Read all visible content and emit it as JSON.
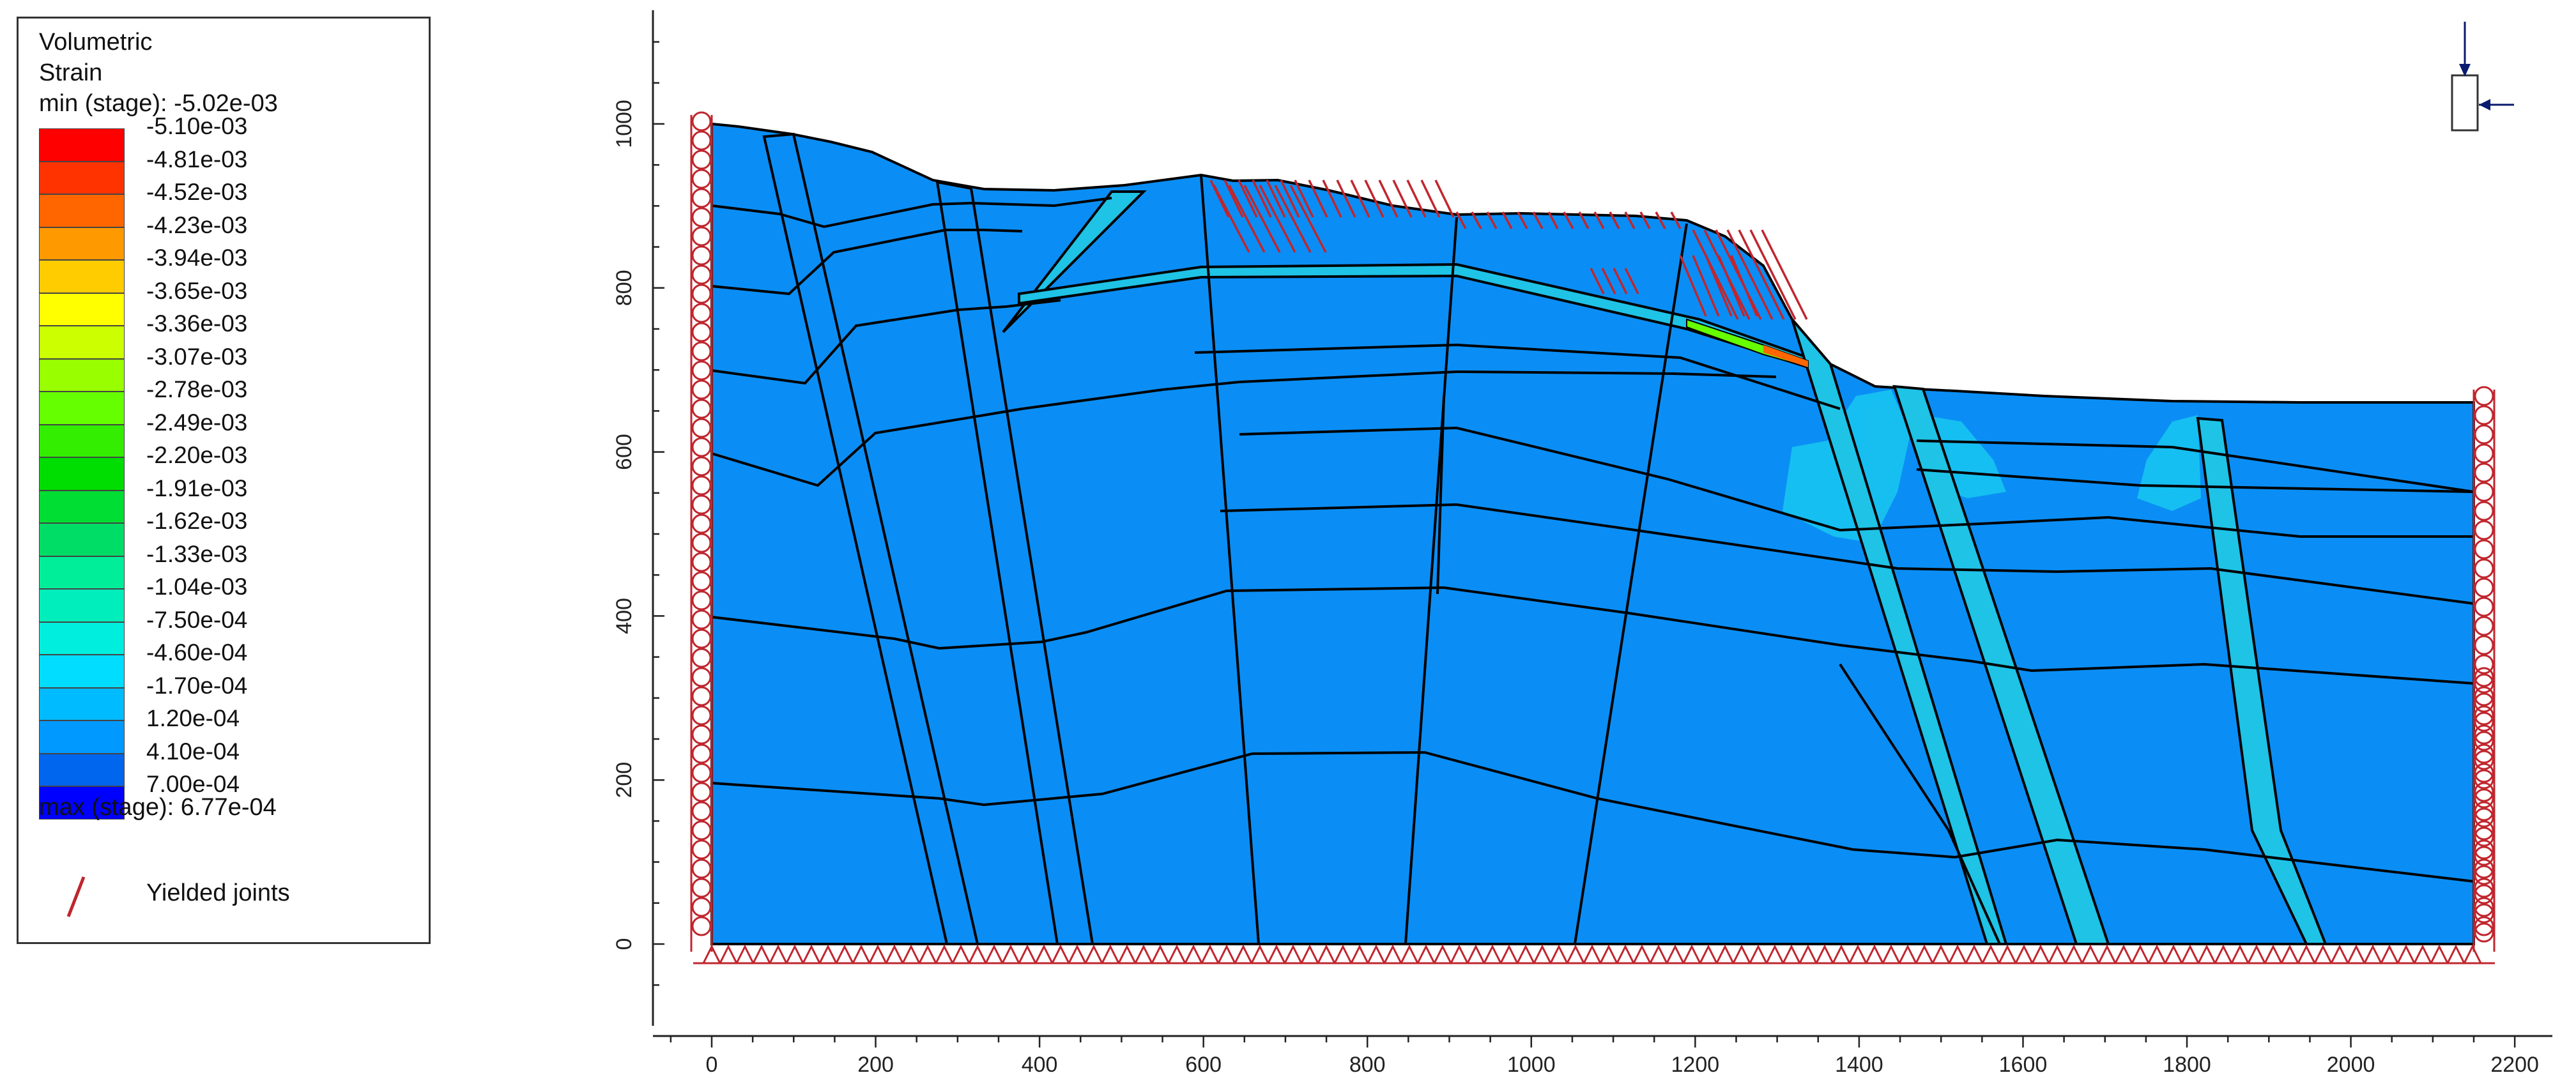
{
  "legend": {
    "title_line1": "Volumetric",
    "title_line2": "Strain",
    "min_label": "min (stage): -5.02e-03",
    "max_label": "max (stage): 6.77e-04",
    "joints_label": "Yielded joints",
    "joint_color": "#c0262e",
    "levels": [
      {
        "label": "-5.10e-03",
        "color": "#ff0000"
      },
      {
        "label": "-4.81e-03",
        "color": "#ff3300"
      },
      {
        "label": "-4.52e-03",
        "color": "#ff6600"
      },
      {
        "label": "-4.23e-03",
        "color": "#ff9900"
      },
      {
        "label": "-3.94e-03",
        "color": "#ffcc00"
      },
      {
        "label": "-3.65e-03",
        "color": "#ffff00"
      },
      {
        "label": "-3.36e-03",
        "color": "#ccff00"
      },
      {
        "label": "-3.07e-03",
        "color": "#99ff00"
      },
      {
        "label": "-2.78e-03",
        "color": "#66ff00"
      },
      {
        "label": "-2.49e-03",
        "color": "#33ee00"
      },
      {
        "label": "-2.20e-03",
        "color": "#00dd00"
      },
      {
        "label": "-1.91e-03",
        "color": "#00dd33"
      },
      {
        "label": "-1.62e-03",
        "color": "#00dd66"
      },
      {
        "label": "-1.33e-03",
        "color": "#00ee99"
      },
      {
        "label": "-1.04e-03",
        "color": "#00eebb"
      },
      {
        "label": "-7.50e-04",
        "color": "#00eedd"
      },
      {
        "label": "-4.60e-04",
        "color": "#00ddff"
      },
      {
        "label": "-1.70e-04",
        "color": "#00bbff"
      },
      {
        "label": "1.20e-04",
        "color": "#0099ff"
      },
      {
        "label": "4.10e-04",
        "color": "#0066ee"
      },
      {
        "label": "7.00e-04",
        "color": "#0000ff"
      }
    ]
  },
  "axes": {
    "x_ticks": [
      "0",
      "200",
      "400",
      "600",
      "800",
      "1000",
      "1200",
      "1400",
      "1600",
      "1800",
      "2000",
      "2200"
    ],
    "y_ticks": [
      "0",
      "200",
      "400",
      "600",
      "800",
      "1000"
    ]
  },
  "colors": {
    "rock_fill": "#0a8ef5",
    "zone_light": "#19c8f0",
    "zone_strain": "#1ec3e6",
    "joint_line": "#000000",
    "support": "#c0262e",
    "load_arrow": "#0a1a6e"
  }
}
